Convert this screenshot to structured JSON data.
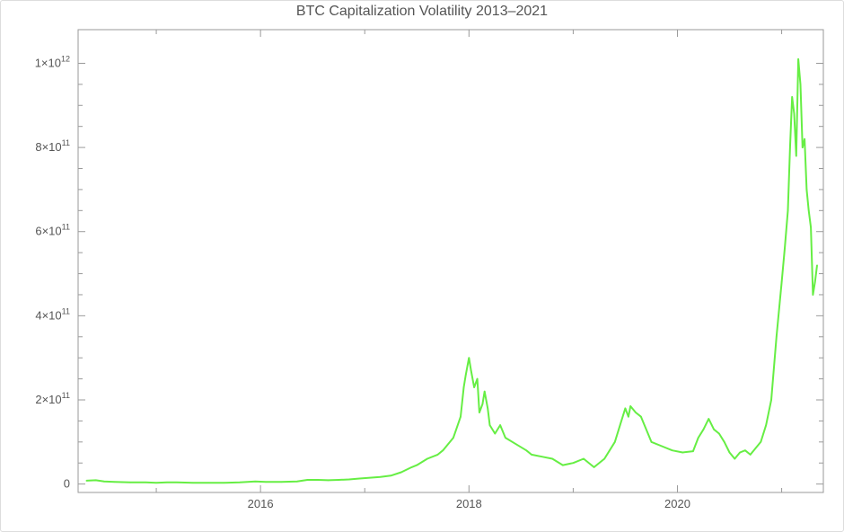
{
  "chart_data": {
    "type": "line",
    "title": "BTC Capitalization Volatility 2013–2021",
    "xlabel": "",
    "ylabel": "",
    "xlim": [
      2014.25,
      2021.4
    ],
    "ylim": [
      -20000000000,
      1080000000000
    ],
    "grid": false,
    "x_ticks": [
      {
        "value": 2016,
        "label": "2016"
      },
      {
        "value": 2018,
        "label": "2018"
      },
      {
        "value": 2020,
        "label": "2020"
      }
    ],
    "y_ticks": [
      {
        "value": 0,
        "mant": "0",
        "exp": ""
      },
      {
        "value": 200000000000,
        "mant": "2×10",
        "exp": "11"
      },
      {
        "value": 400000000000,
        "mant": "4×10",
        "exp": "11"
      },
      {
        "value": 600000000000,
        "mant": "6×10",
        "exp": "11"
      },
      {
        "value": 800000000000,
        "mant": "8×10",
        "exp": "11"
      },
      {
        "value": 1000000000000,
        "mant": "1×10",
        "exp": "12"
      }
    ],
    "series": [
      {
        "color": "#66ee44",
        "x": [
          2014.33,
          2014.42,
          2014.5,
          2014.6,
          2014.75,
          2014.9,
          2015.0,
          2015.1,
          2015.2,
          2015.35,
          2015.5,
          2015.65,
          2015.8,
          2015.95,
          2016.05,
          2016.2,
          2016.35,
          2016.45,
          2016.55,
          2016.65,
          2016.75,
          2016.85,
          2016.95,
          2017.05,
          2017.15,
          2017.25,
          2017.35,
          2017.45,
          2017.5,
          2017.6,
          2017.7,
          2017.75,
          2017.85,
          2017.92,
          2017.95,
          2017.97,
          2018.0,
          2018.02,
          2018.05,
          2018.08,
          2018.1,
          2018.13,
          2018.15,
          2018.18,
          2018.2,
          2018.25,
          2018.3,
          2018.35,
          2018.45,
          2018.55,
          2018.6,
          2018.7,
          2018.8,
          2018.9,
          2019.0,
          2019.1,
          2019.2,
          2019.3,
          2019.4,
          2019.45,
          2019.5,
          2019.53,
          2019.55,
          2019.6,
          2019.65,
          2019.7,
          2019.75,
          2019.85,
          2019.95,
          2020.05,
          2020.15,
          2020.2,
          2020.25,
          2020.3,
          2020.35,
          2020.4,
          2020.45,
          2020.5,
          2020.55,
          2020.6,
          2020.65,
          2020.7,
          2020.8,
          2020.85,
          2020.9,
          2020.95,
          2021.0,
          2021.03,
          2021.06,
          2021.08,
          2021.1,
          2021.12,
          2021.14,
          2021.16,
          2021.18,
          2021.2,
          2021.22,
          2021.24,
          2021.26,
          2021.28,
          2021.3,
          2021.32,
          2021.34
        ],
        "y": [
          8000000000,
          9000000000,
          6000000000,
          5000000000,
          4000000000,
          4000000000,
          3000000000,
          4000000000,
          4000000000,
          3000000000,
          3000000000,
          3000000000,
          4000000000,
          6000000000,
          5000000000,
          5000000000,
          6000000000,
          10000000000,
          10000000000,
          9000000000,
          10000000000,
          11000000000,
          13000000000,
          15000000000,
          17000000000,
          20000000000,
          28000000000,
          40000000000,
          45000000000,
          60000000000,
          70000000000,
          80000000000,
          110000000000,
          160000000000,
          230000000000,
          260000000000,
          300000000000,
          270000000000,
          230000000000,
          250000000000,
          170000000000,
          190000000000,
          220000000000,
          180000000000,
          140000000000,
          120000000000,
          140000000000,
          110000000000,
          95000000000,
          80000000000,
          70000000000,
          65000000000,
          60000000000,
          45000000000,
          50000000000,
          60000000000,
          40000000000,
          60000000000,
          100000000000,
          140000000000,
          180000000000,
          160000000000,
          185000000000,
          170000000000,
          160000000000,
          130000000000,
          100000000000,
          90000000000,
          80000000000,
          75000000000,
          78000000000,
          110000000000,
          130000000000,
          155000000000,
          130000000000,
          120000000000,
          100000000000,
          75000000000,
          60000000000,
          75000000000,
          80000000000,
          70000000000,
          100000000000,
          140000000000,
          200000000000,
          350000000000,
          480000000000,
          560000000000,
          650000000000,
          800000000000,
          920000000000,
          880000000000,
          780000000000,
          1010000000000,
          950000000000,
          800000000000,
          820000000000,
          700000000000,
          650000000000,
          610000000000,
          450000000000,
          480000000000,
          520000000000
        ]
      }
    ]
  }
}
